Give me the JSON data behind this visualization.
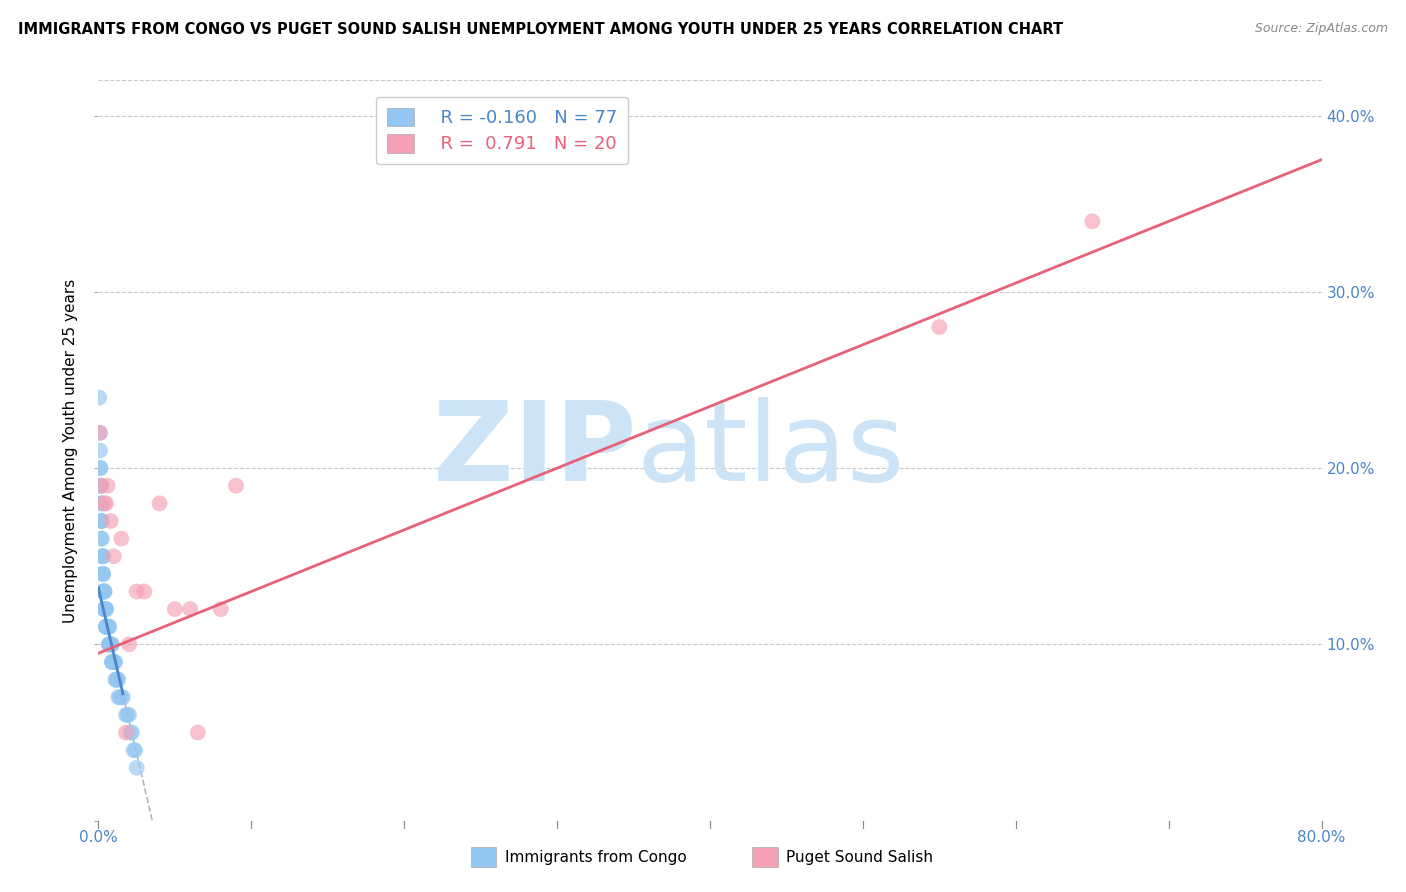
{
  "title": "IMMIGRANTS FROM CONGO VS PUGET SOUND SALISH UNEMPLOYMENT AMONG YOUTH UNDER 25 YEARS CORRELATION CHART",
  "source": "Source: ZipAtlas.com",
  "ylabel": "Unemployment Among Youth under 25 years",
  "xlabel_legend1": "Immigrants from Congo",
  "xlabel_legend2": "Puget Sound Salish",
  "xlim": [
    0.0,
    0.8
  ],
  "ylim": [
    0.0,
    0.42
  ],
  "yticks": [
    0.0,
    0.1,
    0.2,
    0.3,
    0.4
  ],
  "xticks": [
    0.0,
    0.1,
    0.2,
    0.3,
    0.4,
    0.5,
    0.6,
    0.7,
    0.8
  ],
  "R_congo": -0.16,
  "N_congo": 77,
  "R_salish": 0.791,
  "N_salish": 20,
  "color_congo": "#93c6f0",
  "color_salish": "#f5a0b5",
  "color_line_congo": "#4a86c8",
  "color_line_salish": "#e8607a",
  "color_line_dashed": "#b0b8c8",
  "watermark_zip": "ZIP",
  "watermark_atlas": "atlas",
  "watermark_color": "#cce4f5",
  "congo_x": [
    0.0005,
    0.001,
    0.001,
    0.001,
    0.0015,
    0.0015,
    0.0015,
    0.002,
    0.002,
    0.002,
    0.002,
    0.002,
    0.002,
    0.002,
    0.002,
    0.003,
    0.003,
    0.003,
    0.003,
    0.003,
    0.003,
    0.003,
    0.0035,
    0.004,
    0.004,
    0.004,
    0.004,
    0.004,
    0.004,
    0.004,
    0.0045,
    0.005,
    0.005,
    0.005,
    0.005,
    0.005,
    0.005,
    0.005,
    0.006,
    0.006,
    0.006,
    0.006,
    0.007,
    0.007,
    0.007,
    0.007,
    0.007,
    0.007,
    0.008,
    0.008,
    0.008,
    0.008,
    0.009,
    0.009,
    0.009,
    0.009,
    0.01,
    0.01,
    0.01,
    0.01,
    0.011,
    0.011,
    0.012,
    0.012,
    0.013,
    0.013,
    0.014,
    0.015,
    0.016,
    0.018,
    0.019,
    0.02,
    0.021,
    0.022,
    0.023,
    0.024,
    0.025
  ],
  "congo_y": [
    0.24,
    0.22,
    0.21,
    0.2,
    0.2,
    0.19,
    0.19,
    0.18,
    0.18,
    0.17,
    0.17,
    0.17,
    0.16,
    0.16,
    0.15,
    0.15,
    0.15,
    0.14,
    0.14,
    0.14,
    0.13,
    0.13,
    0.13,
    0.13,
    0.13,
    0.12,
    0.12,
    0.12,
    0.12,
    0.12,
    0.12,
    0.12,
    0.12,
    0.11,
    0.11,
    0.11,
    0.11,
    0.11,
    0.11,
    0.11,
    0.11,
    0.11,
    0.11,
    0.11,
    0.1,
    0.1,
    0.1,
    0.1,
    0.1,
    0.1,
    0.1,
    0.1,
    0.1,
    0.09,
    0.09,
    0.09,
    0.09,
    0.09,
    0.09,
    0.09,
    0.09,
    0.08,
    0.08,
    0.08,
    0.08,
    0.07,
    0.07,
    0.07,
    0.07,
    0.06,
    0.06,
    0.06,
    0.05,
    0.05,
    0.04,
    0.04,
    0.03
  ],
  "salish_x": [
    0.001,
    0.002,
    0.004,
    0.005,
    0.006,
    0.008,
    0.01,
    0.015,
    0.02,
    0.025,
    0.03,
    0.04,
    0.05,
    0.06,
    0.065,
    0.08,
    0.09,
    0.55,
    0.65,
    0.018
  ],
  "salish_y": [
    0.22,
    0.19,
    0.18,
    0.18,
    0.19,
    0.17,
    0.15,
    0.16,
    0.1,
    0.13,
    0.13,
    0.18,
    0.12,
    0.12,
    0.05,
    0.12,
    0.19,
    0.28,
    0.34,
    0.05
  ],
  "trendline_congo_x0": 0.0,
  "trendline_congo_x1": 0.016,
  "trendline_congo_y0": 0.132,
  "trendline_congo_y1": 0.072,
  "trendline_dashed_x0": 0.016,
  "trendline_dashed_x1": 0.22,
  "trendline_salish_x0": 0.0,
  "trendline_salish_x1": 0.8,
  "trendline_salish_y0": 0.095,
  "trendline_salish_y1": 0.375
}
